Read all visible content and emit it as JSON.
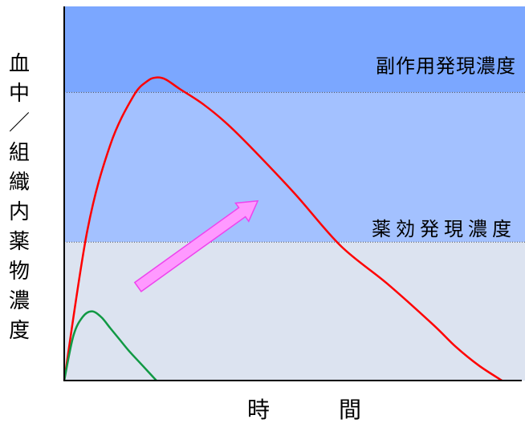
{
  "chart_data": {
    "type": "line",
    "xlabel": [
      "時",
      "間"
    ],
    "ylabel": [
      "血",
      "中",
      "／",
      "組",
      "織",
      "内",
      "薬",
      "物",
      "濃",
      "度"
    ],
    "xlim": [
      0,
      100
    ],
    "ylim": [
      0,
      100
    ],
    "bands": [
      {
        "label": "副作用発現濃度",
        "from": 77,
        "to": 100,
        "color": "#7ba7ff"
      },
      {
        "label": "",
        "from": 37,
        "to": 77,
        "color": "#a3c1ff"
      },
      {
        "label": "",
        "from": 0,
        "to": 37,
        "color": "#dce3f0"
      }
    ],
    "thresholds": [
      {
        "label": "副作用発現濃度",
        "value": 77
      },
      {
        "label": "薬効発現濃度",
        "value": 37
      }
    ],
    "series": [
      {
        "color": "#ff0000",
        "x": [
          0,
          5,
          10,
          15,
          18,
          20,
          22,
          25,
          30,
          35,
          40,
          50,
          60,
          70,
          80,
          85,
          90,
          95
        ],
        "y": [
          0,
          40,
          63,
          76,
          80,
          81,
          80.5,
          78,
          74,
          69,
          63,
          50,
          36,
          26,
          15,
          9,
          4,
          0
        ]
      },
      {
        "color": "#119944",
        "x": [
          0,
          2,
          4,
          6,
          8,
          10,
          12,
          14,
          17,
          20
        ],
        "y": [
          0,
          12,
          17,
          18.5,
          17,
          14,
          11,
          8,
          4,
          0
        ]
      }
    ],
    "annotation_arrow": {
      "color": "#ff99ff",
      "from": [
        16,
        25
      ],
      "to": [
        42,
        48
      ]
    }
  }
}
